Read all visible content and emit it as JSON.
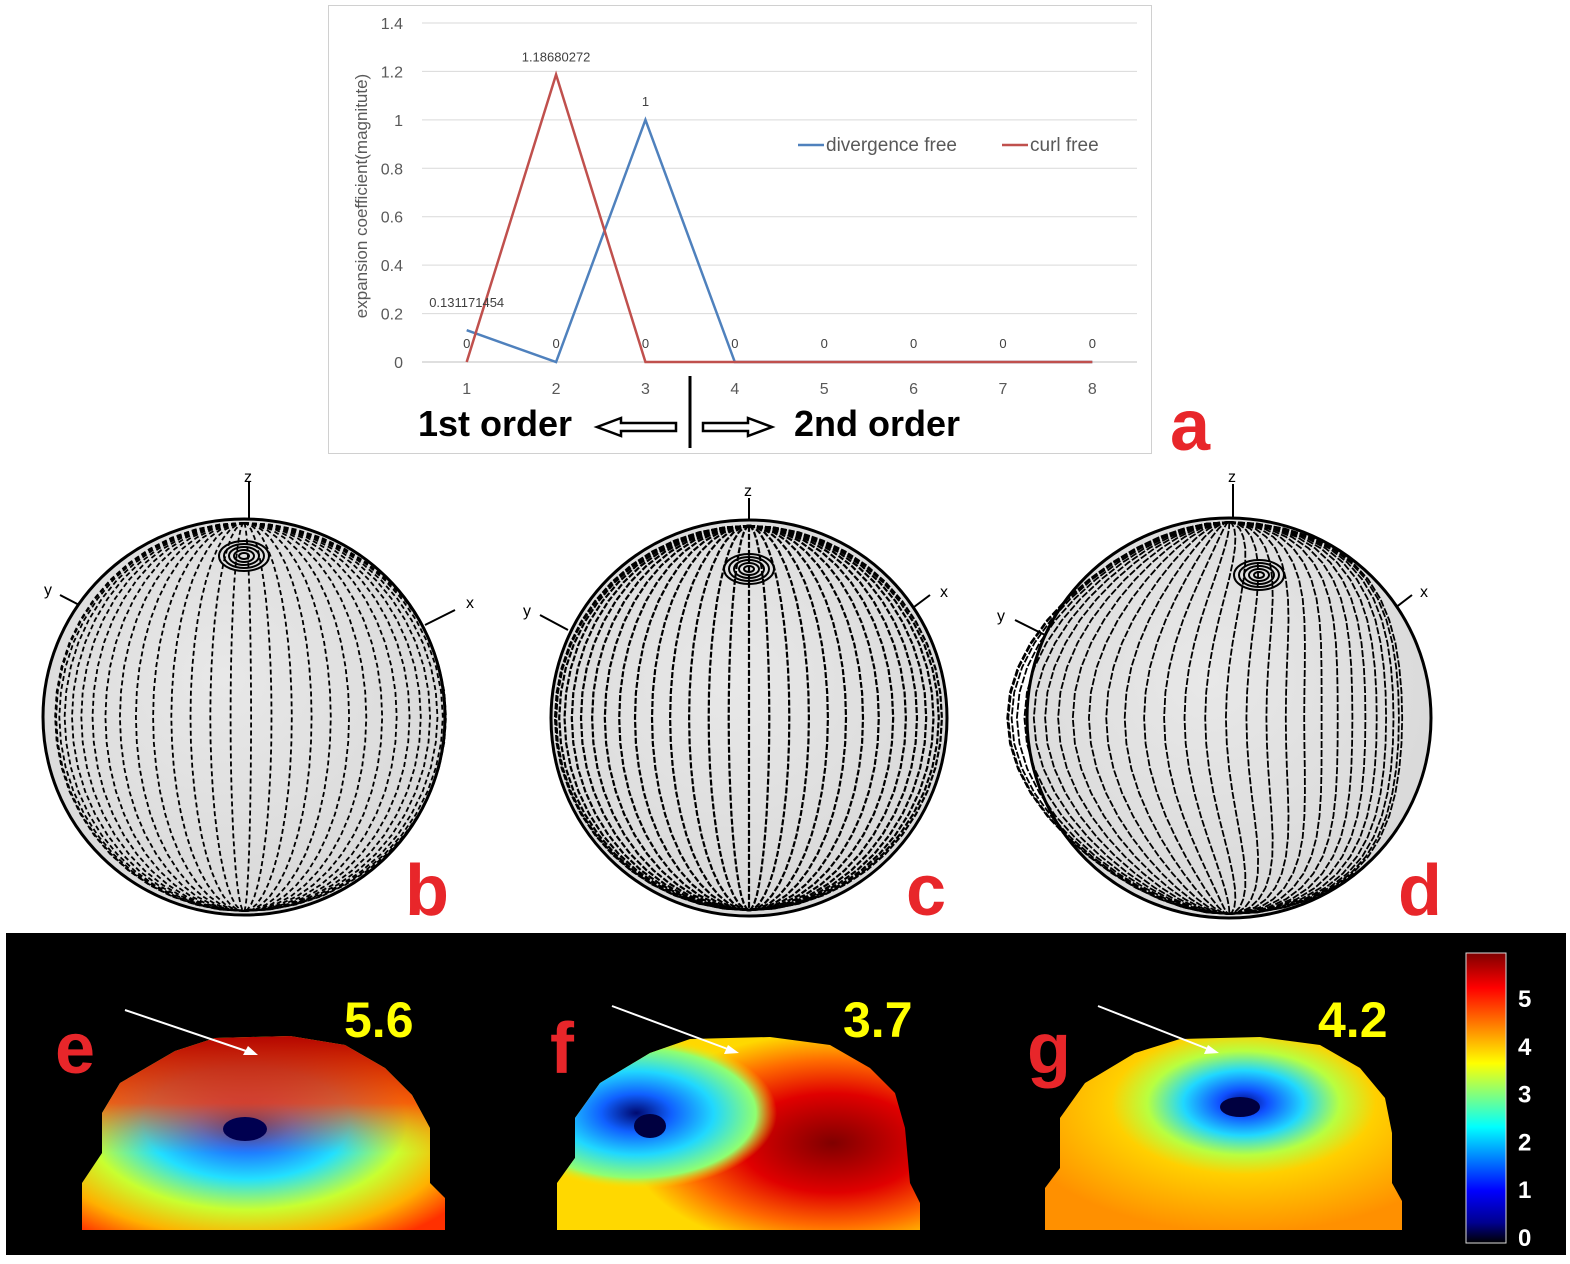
{
  "chart_data": {
    "type": "line",
    "x": [
      1,
      2,
      3,
      4,
      5,
      6,
      7,
      8
    ],
    "series": [
      {
        "name": "divergence free",
        "color": "#4f81bd",
        "values": [
          0.131171454,
          0,
          1,
          0,
          0,
          0,
          0,
          0
        ],
        "labels": [
          "0.131171454",
          "0",
          "1",
          "0",
          "0",
          "0",
          "0",
          "0"
        ]
      },
      {
        "name": "curl free",
        "color": "#c0504d",
        "values": [
          0,
          1.18680272,
          0,
          0,
          0,
          0,
          0,
          0
        ],
        "labels": [
          "0",
          "1.18680272",
          "0",
          "0",
          "0",
          "0",
          "0",
          "0"
        ]
      }
    ],
    "ylabel": "expansion coefficient(magnitute)",
    "ylim": [
      0,
      1.4
    ],
    "yticks": [
      "0",
      "0.2",
      "0.4",
      "0.6",
      "0.8",
      "1",
      "1.2",
      "1.4"
    ],
    "xticks": [
      "1",
      "2",
      "3",
      "4",
      "5",
      "6",
      "7",
      "8"
    ],
    "grid": true,
    "legend": "top-right"
  },
  "annotations": {
    "first_order": "1st order",
    "second_order": "2nd order"
  },
  "panels": {
    "a": "a",
    "b": "b",
    "c": "c",
    "d": "d",
    "e": "e",
    "f": "f",
    "g": "g"
  },
  "axis_letters": {
    "z": "z",
    "y": "y",
    "x": "x"
  },
  "maps": [
    {
      "letter": "e",
      "max_value": "5.6"
    },
    {
      "letter": "f",
      "max_value": "3.7"
    },
    {
      "letter": "g",
      "max_value": "4.2"
    }
  ],
  "colorbar": {
    "ticks": [
      "5",
      "4",
      "3",
      "2",
      "1",
      "0"
    ],
    "stops": [
      "#7f0000",
      "#ff0000",
      "#ffff00",
      "#00ffff",
      "#0000ff",
      "#00008f",
      "#000000"
    ]
  },
  "colors": {
    "panel_letter": "#e8262a",
    "max_value": "#ffff00"
  }
}
